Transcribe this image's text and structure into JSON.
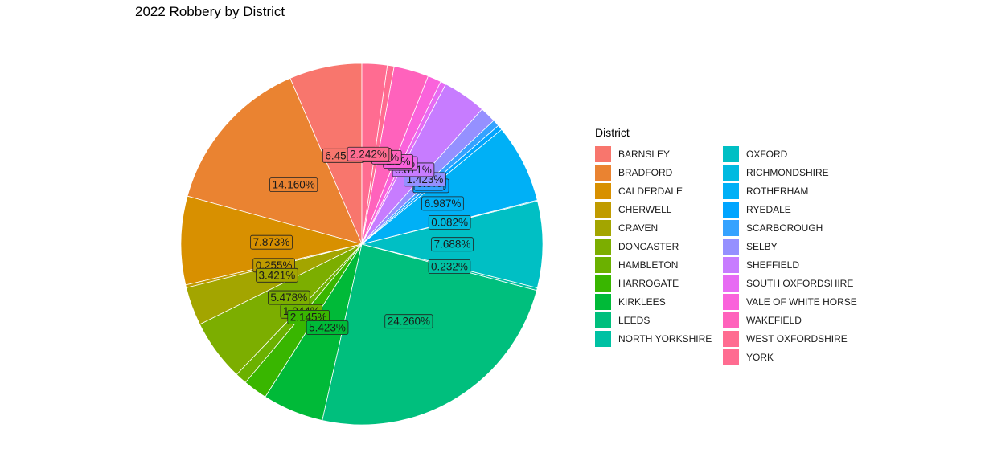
{
  "chart_data": {
    "type": "pie",
    "title": "2022 Robbery by District",
    "legend_title": "District",
    "legend_position": "right",
    "slices": [
      {
        "name": "BARNSLEY",
        "value": 6.451,
        "label": "6.451%",
        "color": "#F8766D"
      },
      {
        "name": "BRADFORD",
        "value": 14.16,
        "label": "14.160%",
        "color": "#EA8331"
      },
      {
        "name": "CALDERDALE",
        "value": 7.873,
        "label": "7.873%",
        "color": "#D89000"
      },
      {
        "name": "CHERWELL",
        "value": 0.255,
        "label": "0.255%",
        "color": "#C09B00"
      },
      {
        "name": "CRAVEN",
        "value": 3.421,
        "label": "3.421%",
        "color": "#A3A500"
      },
      {
        "name": "DONCASTER",
        "value": 5.478,
        "label": "5.478%",
        "color": "#7CAE00"
      },
      {
        "name": "HAMBLETON",
        "value": 1.044,
        "label": "1.044%",
        "color": "#6BB100"
      },
      {
        "name": "HARROGATE",
        "value": 2.145,
        "label": "2.145%",
        "color": "#39B600"
      },
      {
        "name": "KIRKLEES",
        "value": 5.423,
        "label": "5.423%",
        "color": "#00BA38"
      },
      {
        "name": "LEEDS",
        "value": 24.26,
        "label": "24.260%",
        "color": "#00BF7D"
      },
      {
        "name": "NORTH YORKSHIRE",
        "value": 0.232,
        "label": "0.232%",
        "color": "#00C1A3"
      },
      {
        "name": "OXFORD",
        "value": 7.688,
        "label": "7.688%",
        "color": "#00BFC4"
      },
      {
        "name": "RICHMONDSHIRE",
        "value": 0.082,
        "label": "0.082%",
        "color": "#00BAE0"
      },
      {
        "name": "ROTHERHAM",
        "value": 6.987,
        "label": "6.987%",
        "color": "#00B0F6"
      },
      {
        "name": "RYEDALE",
        "value": 0.45,
        "label": "0.45%",
        "color": "#00A5FF"
      },
      {
        "name": "SCARBOROUGH",
        "value": 0.6,
        "label": "0.6%",
        "color": "#35A2FF"
      },
      {
        "name": "SELBY",
        "value": 1.423,
        "label": "1.423%",
        "color": "#9590FF"
      },
      {
        "name": "SHEFFIELD",
        "value": 3.871,
        "label": "3.871%",
        "color": "#C77CFF"
      },
      {
        "name": "SOUTH OXFORDSHIRE",
        "value": 0.5,
        "label": "0.5%",
        "color": "#E76BF3"
      },
      {
        "name": "VALE OF WHITE HORSE",
        "value": 1.2,
        "label": "1.2%",
        "color": "#FA62DB"
      },
      {
        "name": "WAKEFIELD",
        "value": 3.1,
        "label": "3.1%",
        "color": "#FF62BC"
      },
      {
        "name": "WEST OXFORDSHIRE",
        "value": 0.6,
        "label": "0.6%",
        "color": "#FF6C91"
      },
      {
        "name": "YORK",
        "value": 2.242,
        "label": "2.242%",
        "color": "#FF6C91"
      }
    ]
  }
}
